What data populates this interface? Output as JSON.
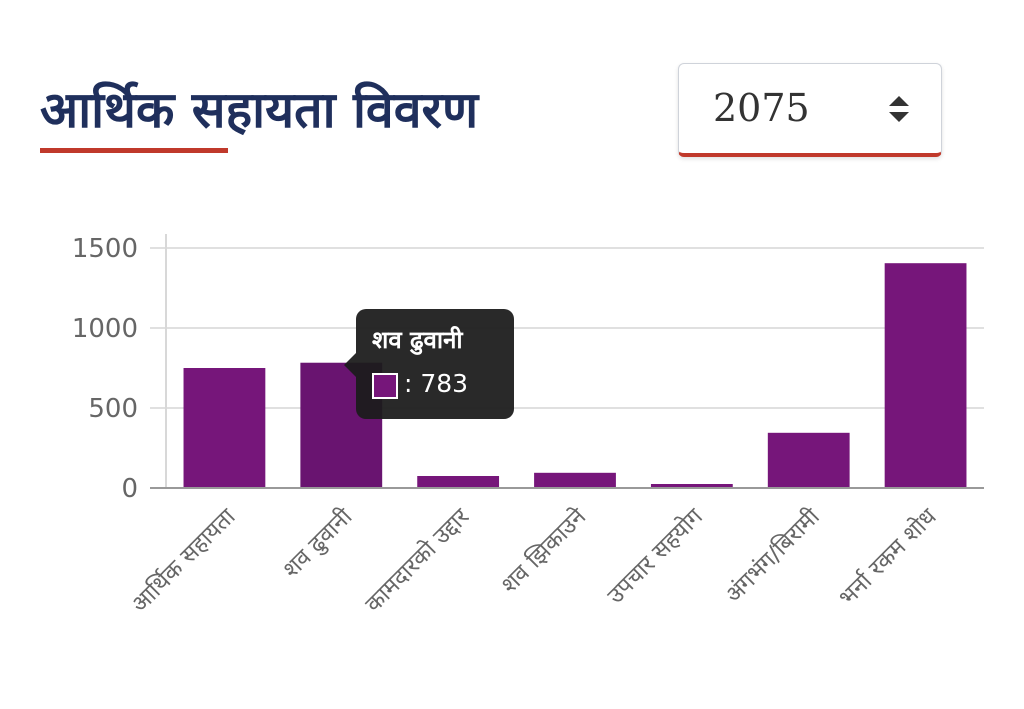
{
  "header": {
    "title": "आर्थिक सहायता विवरण",
    "accent_color": "#c0392b",
    "title_color": "#1f2f5c"
  },
  "year_select": {
    "value": "2075",
    "icon": "sort-icon"
  },
  "chart_data": {
    "type": "bar",
    "categories": [
      "आर्थिक सहायता",
      "शव ढुवानी",
      "कामदारको उद्दार",
      "शव झिकाउने",
      "उपचार सहयोग",
      "अंगभंग/बिरामी",
      "भर्ना रकम शोध"
    ],
    "values": [
      750,
      783,
      75,
      95,
      25,
      345,
      1405
    ],
    "ylim": [
      0,
      1500
    ],
    "yticks": [
      0,
      500,
      1000,
      1500
    ],
    "grid": true,
    "bar_color": "#76167a",
    "highlight_color": "#691470"
  },
  "tooltip": {
    "category": "शव ढुवानी",
    "value_text": ": 783"
  }
}
